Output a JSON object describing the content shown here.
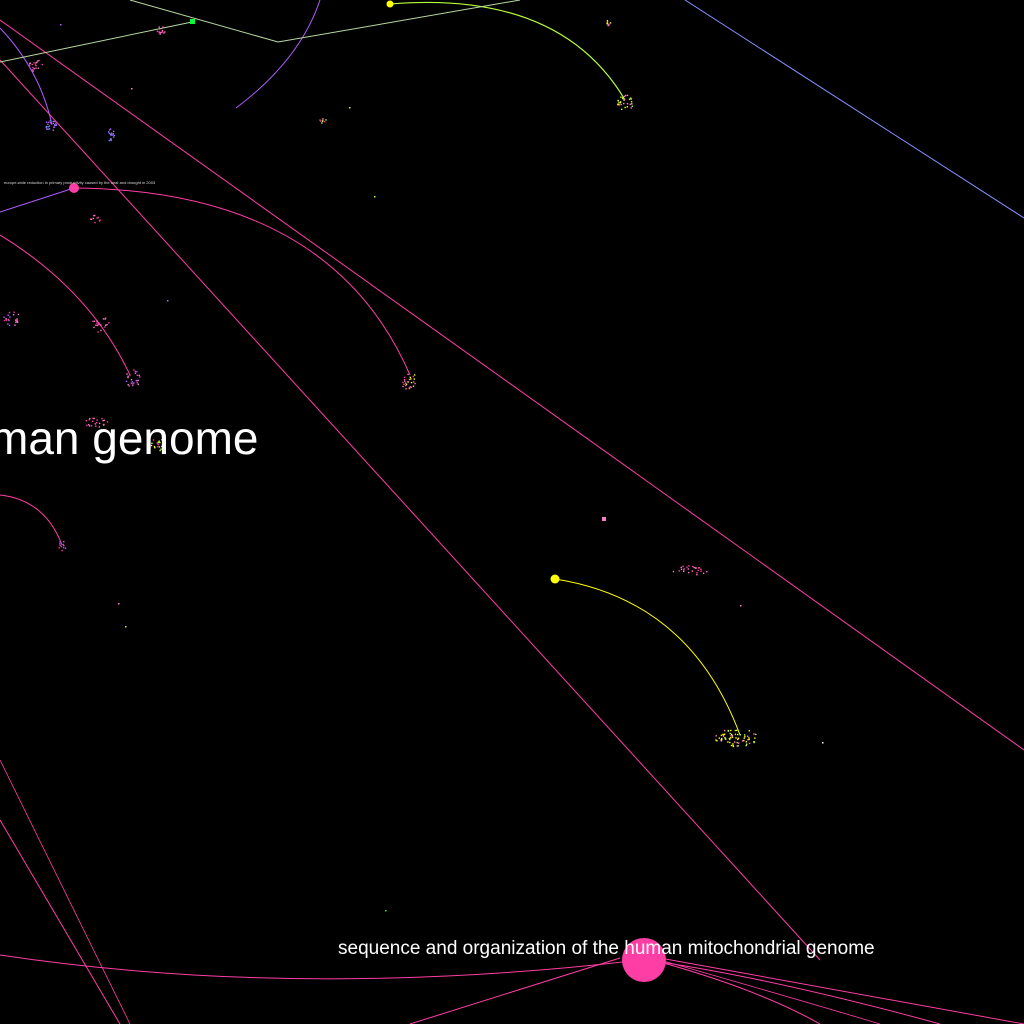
{
  "labels": {
    "large_partial": "man genome",
    "main": "sequence and organization of the human mitochondrial genome",
    "tiny": "europe-wide reduction in primary productivity caused by the heat and drought in 2003"
  },
  "colors": {
    "background": "#000000",
    "magenta": "#ff3ea5",
    "pink": "#ff7ac8",
    "yellow": "#ffff00",
    "lime": "#b6ff3a",
    "green": "#00ff3a",
    "violet": "#b05cff",
    "blue": "#7c86ff",
    "slate": "#8890ff",
    "sage": "#b8d8a0",
    "white": "#ffffff"
  }
}
